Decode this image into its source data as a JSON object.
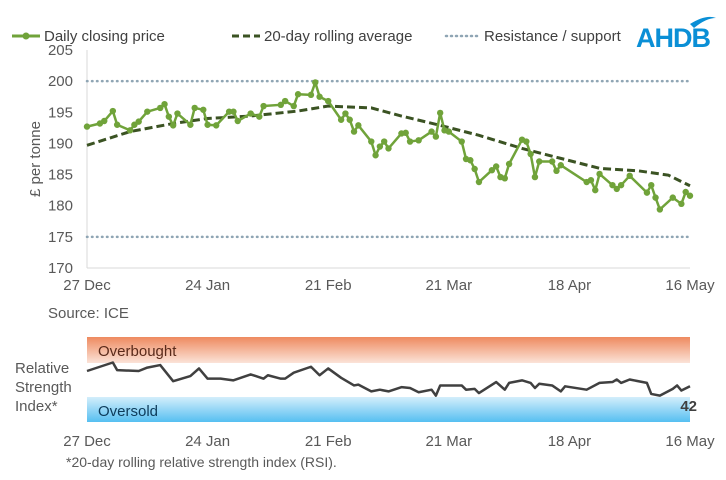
{
  "logo": {
    "text": "AHDB",
    "color": "#0a8fd6"
  },
  "source": "Source: ICE",
  "footnote": "*20-day rolling relative strength index (RSI).",
  "chart_data": [
    {
      "type": "line",
      "ylabel": "£ per tonne",
      "ylim": [
        170,
        205
      ],
      "yticks": [
        170,
        175,
        180,
        185,
        190,
        195,
        200,
        205
      ],
      "xticks": [
        "27 Dec",
        "24 Jan",
        "21 Feb",
        "21 Mar",
        "18 Apr",
        "16 May"
      ],
      "legend_position": "top",
      "grid": false,
      "series": [
        {
          "name": "Daily closing price",
          "style": "solid-with-markers",
          "color": "#70a33a",
          "points": [
            [
              "27 Dec",
              192.7
            ],
            [
              "30 Dec",
              193.2
            ],
            [
              "31 Dec",
              193.6
            ],
            [
              "2 Jan",
              195.2
            ],
            [
              "3 Jan",
              193.0
            ],
            [
              "6 Jan",
              192.1
            ],
            [
              "7 Jan",
              193.0
            ],
            [
              "8 Jan",
              193.5
            ],
            [
              "10 Jan",
              195.1
            ],
            [
              "13 Jan",
              195.7
            ],
            [
              "14 Jan",
              196.3
            ],
            [
              "15 Jan",
              194.3
            ],
            [
              "16 Jan",
              192.9
            ],
            [
              "17 Jan",
              194.8
            ],
            [
              "20 Jan",
              193.0
            ],
            [
              "21 Jan",
              195.7
            ],
            [
              "23 Jan",
              195.4
            ],
            [
              "24 Jan",
              193.0
            ],
            [
              "26 Jan",
              192.9
            ],
            [
              "29 Jan",
              195.1
            ],
            [
              "30 Jan",
              195.1
            ],
            [
              "31 Jan",
              193.6
            ],
            [
              "3 Feb",
              194.8
            ],
            [
              "5 Feb",
              194.3
            ],
            [
              "6 Feb",
              196.0
            ],
            [
              "10 Feb",
              196.2
            ],
            [
              "11 Feb",
              196.8
            ],
            [
              "13 Feb",
              196.0
            ],
            [
              "14 Feb",
              197.9
            ],
            [
              "17 Feb",
              197.8
            ],
            [
              "18 Feb",
              199.8
            ],
            [
              "19 Feb",
              197.5
            ],
            [
              "21 Feb",
              196.8
            ],
            [
              "24 Feb",
              193.8
            ],
            [
              "25 Feb",
              194.8
            ],
            [
              "26 Feb",
              193.8
            ],
            [
              "27 Feb",
              191.9
            ],
            [
              "28 Feb",
              192.9
            ],
            [
              "3 Mar",
              190.3
            ],
            [
              "4 Mar",
              188.1
            ],
            [
              "5 Mar",
              189.5
            ],
            [
              "6 Mar",
              190.3
            ],
            [
              "7 Mar",
              189.2
            ],
            [
              "10 Mar",
              191.6
            ],
            [
              "11 Mar",
              191.7
            ],
            [
              "12 Mar",
              190.3
            ],
            [
              "14 Mar",
              190.5
            ],
            [
              "17 Mar",
              191.9
            ],
            [
              "18 Mar",
              191.1
            ],
            [
              "19 Mar",
              194.9
            ],
            [
              "20 Mar",
              192.1
            ],
            [
              "21 Mar",
              191.9
            ],
            [
              "24 Mar",
              190.3
            ],
            [
              "25 Mar",
              187.5
            ],
            [
              "26 Mar",
              187.3
            ],
            [
              "27 Mar",
              185.9
            ],
            [
              "28 Mar",
              183.8
            ],
            [
              "31 Mar",
              185.7
            ],
            [
              "1 Apr",
              186.3
            ],
            [
              "2 Apr",
              184.6
            ],
            [
              "3 Apr",
              184.4
            ],
            [
              "4 Apr",
              186.7
            ],
            [
              "7 Apr",
              190.6
            ],
            [
              "8 Apr",
              190.3
            ],
            [
              "9 Apr",
              188.3
            ],
            [
              "10 Apr",
              184.6
            ],
            [
              "11 Apr",
              187.1
            ],
            [
              "14 Apr",
              187.1
            ],
            [
              "15 Apr",
              185.6
            ],
            [
              "16 Apr",
              186.5
            ],
            [
              "22 Apr",
              183.8
            ],
            [
              "23 Apr",
              184.1
            ],
            [
              "24 Apr",
              182.5
            ],
            [
              "25 Apr",
              185.1
            ],
            [
              "28 Apr",
              183.3
            ],
            [
              "29 Apr",
              182.7
            ],
            [
              "30 Apr",
              183.3
            ],
            [
              "2 May",
              184.8
            ],
            [
              "6 May",
              182.1
            ],
            [
              "7 May",
              183.3
            ],
            [
              "8 May",
              181.3
            ],
            [
              "9 May",
              179.4
            ],
            [
              "12 May",
              181.3
            ],
            [
              "14 May",
              180.3
            ],
            [
              "15 May",
              182.2
            ],
            [
              "16 May",
              181.6
            ]
          ]
        },
        {
          "name": "20-day rolling average",
          "style": "dashed",
          "color": "#3b5323",
          "points": [
            [
              "27 Dec",
              189.7
            ],
            [
              "6 Jan",
              191.9
            ],
            [
              "16 Jan",
              193.2
            ],
            [
              "24 Jan",
              194.0
            ],
            [
              "3 Feb",
              194.4
            ],
            [
              "14 Feb",
              195.2
            ],
            [
              "21 Feb",
              196.0
            ],
            [
              "3 Mar",
              195.7
            ],
            [
              "10 Mar",
              194.4
            ],
            [
              "19 Mar",
              192.9
            ],
            [
              "28 Mar",
              191.3
            ],
            [
              "7 Apr",
              189.2
            ],
            [
              "16 Apr",
              187.6
            ],
            [
              "25 Apr",
              186.0
            ],
            [
              "4 May",
              185.6
            ],
            [
              "11 May",
              184.9
            ],
            [
              "16 May",
              183.2
            ]
          ]
        },
        {
          "name": "Resistance / support",
          "style": "dotted",
          "color": "#8fa5b4",
          "levels": [
            200,
            175
          ]
        }
      ]
    },
    {
      "type": "line",
      "ylabel": "Relative Strength Index*",
      "ylim": [
        0,
        100
      ],
      "xticks": [
        "27 Dec",
        "24 Jan",
        "21 Feb",
        "21 Mar",
        "18 Apr",
        "16 May"
      ],
      "bands": [
        {
          "label": "Overbought",
          "range": [
            70,
            100
          ],
          "color": "#f08a5d"
        },
        {
          "label": "Oversold",
          "range": [
            0,
            30
          ],
          "color": "#5bc2f2"
        }
      ],
      "last_value_label": "42",
      "series": [
        {
          "color": "#404040",
          "points": [
            [
              "27 Dec",
              60
            ],
            [
              "2 Jan",
              70
            ],
            [
              "3 Jan",
              61
            ],
            [
              "8 Jan",
              60
            ],
            [
              "10 Jan",
              64
            ],
            [
              "13 Jan",
              67
            ],
            [
              "16 Jan",
              48
            ],
            [
              "20 Jan",
              54
            ],
            [
              "22 Jan",
              63
            ],
            [
              "24 Jan",
              51
            ],
            [
              "27 Jan",
              51
            ],
            [
              "30 Jan",
              49
            ],
            [
              "3 Feb",
              56
            ],
            [
              "6 Feb",
              51
            ],
            [
              "7 Feb",
              55
            ],
            [
              "10 Feb",
              51
            ],
            [
              "11 Feb",
              51
            ],
            [
              "13 Feb",
              58
            ],
            [
              "17 Feb",
              65
            ],
            [
              "19 Feb",
              55
            ],
            [
              "21 Feb",
              63
            ],
            [
              "24 Feb",
              52
            ],
            [
              "27 Feb",
              43
            ],
            [
              "28 Feb",
              44
            ],
            [
              "3 Mar",
              36
            ],
            [
              "5 Mar",
              38
            ],
            [
              "7 Mar",
              36
            ],
            [
              "10 Mar",
              41
            ],
            [
              "12 Mar",
              40
            ],
            [
              "14 Mar",
              35
            ],
            [
              "17 Mar",
              38
            ],
            [
              "18 Mar",
              31
            ],
            [
              "19 Mar",
              43
            ],
            [
              "24 Mar",
              43
            ],
            [
              "25 Mar",
              38
            ],
            [
              "27 Mar",
              39
            ],
            [
              "28 Mar",
              34
            ],
            [
              "1 Apr",
              47
            ],
            [
              "3 Apr",
              38
            ],
            [
              "4 Apr",
              46
            ],
            [
              "7 Apr",
              49
            ],
            [
              "9 Apr",
              46
            ],
            [
              "10 Apr",
              40
            ],
            [
              "11 Apr",
              45
            ],
            [
              "14 Apr",
              43
            ],
            [
              "16 Apr",
              36
            ],
            [
              "17 Apr",
              42
            ],
            [
              "22 Apr",
              38
            ],
            [
              "25 Apr",
              46
            ],
            [
              "28 Apr",
              47
            ],
            [
              "29 Apr",
              50
            ],
            [
              "30 Apr",
              46
            ],
            [
              "2 May",
              50
            ],
            [
              "6 May",
              46
            ],
            [
              "7 May",
              33
            ],
            [
              "9 May",
              31
            ],
            [
              "12 May",
              39
            ],
            [
              "13 May",
              43
            ],
            [
              "14 May",
              37
            ],
            [
              "16 May",
              42
            ]
          ]
        }
      ]
    }
  ]
}
